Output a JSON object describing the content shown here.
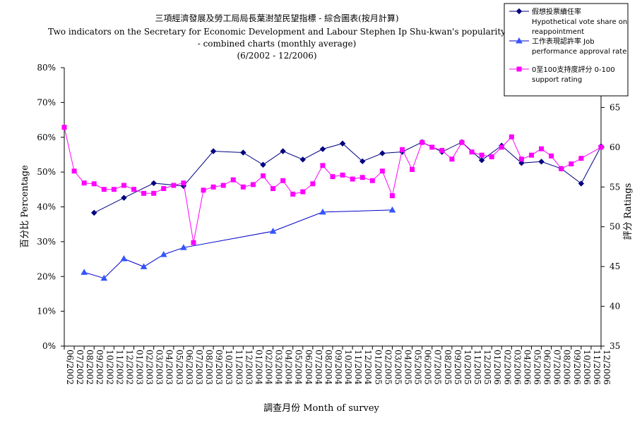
{
  "chart_data": {
    "type": "line",
    "title_lines": [
      "三項經濟發展及勞工局局長葉澍堃民望指標 - 綜合圖表(按月計算)",
      "Two indicators on the Secretary for Economic Development and Labour Stephen Ip Shu-kwan's popularity",
      "- combined charts (monthly average)",
      "(6/2002 - 12/2006)"
    ],
    "xlabel": "調查月份  Month of survey",
    "ylabel_left": "百分比  Percentage",
    "ylabel_right": "評分  Ratings",
    "ylim_left": [
      0,
      80
    ],
    "ylim_right": [
      35,
      70
    ],
    "yticks_left": [
      "0%",
      "10%",
      "20%",
      "30%",
      "40%",
      "50%",
      "60%",
      "70%",
      "80%"
    ],
    "yticks_right": [
      "35",
      "40",
      "45",
      "50",
      "55",
      "60",
      "65"
    ],
    "categories": [
      "06/2002",
      "07/2002",
      "08/2002",
      "09/2002",
      "10/2002",
      "11/2002",
      "12/2002",
      "01/2003",
      "02/2003",
      "03/2003",
      "04/2003",
      "05/2003",
      "06/2003",
      "07/2003",
      "08/2003",
      "09/2003",
      "10/2003",
      "11/2003",
      "12/2003",
      "01/2004",
      "02/2004",
      "03/2004",
      "04/2004",
      "05/2004",
      "06/2004",
      "07/2004",
      "08/2004",
      "09/2004",
      "10/2004",
      "11/2004",
      "12/2004",
      "01/2005",
      "02/2005",
      "03/2005",
      "04/2005",
      "05/2005",
      "06/2005",
      "07/2005",
      "08/2005",
      "09/2005",
      "10/2005",
      "11/2005",
      "12/2005",
      "01/2006",
      "02/2006",
      "03/2006",
      "04/2006",
      "05/2006",
      "06/2006",
      "07/2006",
      "08/2006",
      "09/2006",
      "10/2006",
      "11/2006",
      "12/2006"
    ],
    "legend_position": "top-right",
    "series": [
      {
        "name": "假想投票續任率 Hypothetical vote share on reappointment",
        "legend_lines": [
          "假想投票續任率",
          "Hypothetical vote share on",
          "reappointment"
        ],
        "axis": "left",
        "color": "#000080",
        "marker": "diamond",
        "points": [
          [
            3,
            38.3
          ],
          [
            6,
            42.6
          ],
          [
            9,
            46.8
          ],
          [
            12,
            46.0
          ],
          [
            15,
            56.0
          ],
          [
            18,
            55.6
          ],
          [
            20,
            52.1
          ],
          [
            22,
            56.0
          ],
          [
            24,
            53.6
          ],
          [
            26,
            56.6
          ],
          [
            28,
            58.2
          ],
          [
            30,
            53.1
          ],
          [
            32,
            55.4
          ],
          [
            34,
            55.8
          ],
          [
            36,
            58.6
          ],
          [
            38,
            55.8
          ],
          [
            40,
            58.6
          ],
          [
            42,
            53.4
          ],
          [
            44,
            57.6
          ],
          [
            46,
            52.6
          ],
          [
            48,
            53.0
          ],
          [
            50,
            51.0
          ],
          [
            52,
            46.7
          ],
          [
            54,
            57.4
          ]
        ]
      },
      {
        "name": "工作表現認許率 Job performance approval rate",
        "legend_lines": [
          "工作表現認許率  Job",
          "performance approval rate"
        ],
        "axis": "left",
        "color": "#0000cc",
        "marker": "triangle",
        "marker_color": "#3355ff",
        "points": [
          [
            2,
            21.2
          ],
          [
            4,
            19.5
          ],
          [
            6,
            25.1
          ],
          [
            8,
            22.8
          ],
          [
            10,
            26.3
          ],
          [
            12,
            28.3
          ],
          [
            21,
            33.0
          ],
          [
            26,
            38.5
          ],
          [
            33,
            39.1
          ]
        ]
      },
      {
        "name": "0至100支持度評分 0-100 support rating",
        "legend_lines": [
          "0至100支持度評分  0-100",
          "support rating"
        ],
        "axis": "right",
        "color": "#ff00ff",
        "marker": "square",
        "values": [
          62.5,
          57.0,
          55.5,
          55.4,
          54.7,
          54.7,
          55.2,
          54.7,
          54.2,
          54.2,
          54.8,
          55.2,
          55.5,
          48.0,
          54.6,
          55.0,
          55.2,
          55.9,
          55.0,
          55.3,
          56.4,
          54.8,
          55.8,
          54.1,
          54.4,
          55.4,
          57.7,
          56.3,
          56.5,
          56.0,
          56.2,
          55.8,
          57.0,
          53.9,
          59.7,
          57.2,
          60.6,
          60.0,
          59.6,
          58.5,
          60.6,
          59.4,
          59.0,
          58.8,
          60.0,
          61.3,
          58.5,
          59.0,
          59.8,
          58.9,
          57.3,
          57.9,
          58.6,
          null,
          60.0
        ]
      }
    ]
  }
}
